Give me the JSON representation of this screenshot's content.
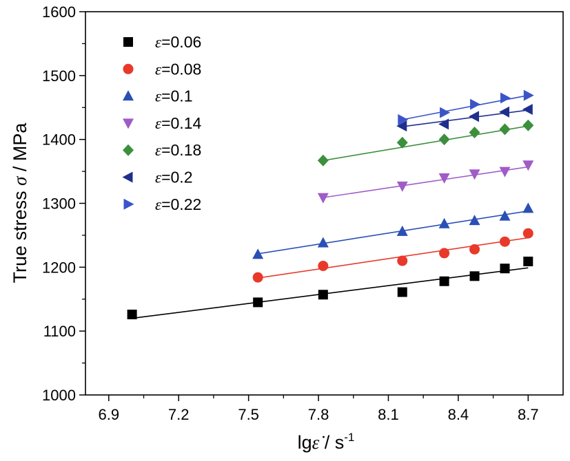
{
  "chart_data": {
    "type": "scatter",
    "xlabel": "lgε̇ / s-1",
    "ylabel": "True stress σ / MPa",
    "xlim": [
      6.8,
      8.85
    ],
    "ylim": [
      1000,
      1600
    ],
    "xticks": [
      "6.9",
      "7.2",
      "7.5",
      "7.8",
      "8.1",
      "8.4",
      "8.7"
    ],
    "yticks": [
      "1000",
      "1100",
      "1200",
      "1300",
      "1400",
      "1500",
      "1600"
    ],
    "legend_position": "top-left",
    "series": [
      {
        "name": "ε=0.06",
        "marker": "square",
        "color": "#000000",
        "x": [
          7.0,
          7.54,
          7.82,
          8.16,
          8.34,
          8.47,
          8.6,
          8.7
        ],
        "y": [
          1126,
          1145,
          1157,
          1161,
          1178,
          1186,
          1198,
          1209
        ],
        "fit": [
          [
            7.0,
            1120
          ],
          [
            8.7,
            1199
          ]
        ]
      },
      {
        "name": "ε=0.08",
        "marker": "circle",
        "color": "#e8392a",
        "x": [
          7.54,
          7.82,
          8.16,
          8.34,
          8.47,
          8.6,
          8.7
        ],
        "y": [
          1184,
          1202,
          1210,
          1222,
          1228,
          1240,
          1253
        ],
        "fit": [
          [
            7.54,
            1183
          ],
          [
            8.7,
            1246
          ]
        ]
      },
      {
        "name": "ε=0.1",
        "marker": "triangle-up",
        "color": "#2a4fb5",
        "x": [
          7.54,
          7.82,
          8.16,
          8.34,
          8.47,
          8.6,
          8.7
        ],
        "y": [
          1220,
          1238,
          1256,
          1268,
          1273,
          1280,
          1292
        ],
        "fit": [
          [
            7.54,
            1221
          ],
          [
            8.7,
            1288
          ]
        ]
      },
      {
        "name": "ε=0.14",
        "marker": "triangle-down",
        "color": "#a05cc6",
        "x": [
          7.82,
          8.16,
          8.34,
          8.47,
          8.6,
          8.7
        ],
        "y": [
          1309,
          1327,
          1340,
          1346,
          1350,
          1360
        ],
        "fit": [
          [
            7.82,
            1309
          ],
          [
            8.7,
            1357
          ]
        ]
      },
      {
        "name": "ε=0.18",
        "marker": "diamond",
        "color": "#3c8f3c",
        "x": [
          7.82,
          8.16,
          8.34,
          8.47,
          8.6,
          8.7
        ],
        "y": [
          1367,
          1395,
          1400,
          1411,
          1416,
          1422
        ],
        "fit": [
          [
            7.82,
            1367
          ],
          [
            8.7,
            1421
          ]
        ]
      },
      {
        "name": "ε=0.2",
        "marker": "triangle-left",
        "color": "#1f2f8e",
        "x": [
          8.16,
          8.34,
          8.47,
          8.6,
          8.7
        ],
        "y": [
          1421,
          1424,
          1436,
          1443,
          1447
        ],
        "fit": [
          [
            8.16,
            1420
          ],
          [
            8.7,
            1446
          ]
        ]
      },
      {
        "name": "ε=0.22",
        "marker": "triangle-right",
        "color": "#3b55c8",
        "x": [
          8.16,
          8.34,
          8.47,
          8.6,
          8.7
        ],
        "y": [
          1431,
          1442,
          1455,
          1465,
          1469
        ],
        "fit": [
          [
            8.16,
            1431
          ],
          [
            8.7,
            1469
          ]
        ]
      }
    ]
  }
}
